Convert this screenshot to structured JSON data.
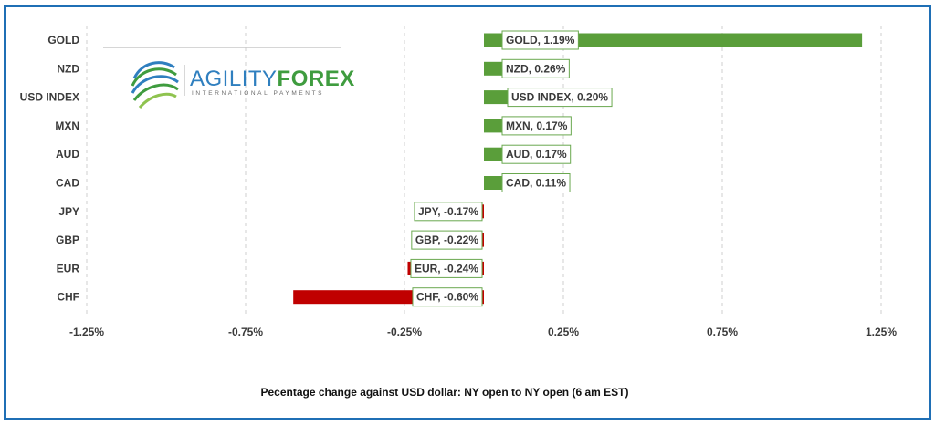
{
  "chart_data": {
    "type": "bar",
    "orientation": "horizontal",
    "categories": [
      "GOLD",
      "NZD",
      "USD INDEX",
      "MXN",
      "AUD",
      "CAD",
      "JPY",
      "GBP",
      "EUR",
      "CHF"
    ],
    "values": [
      1.19,
      0.26,
      0.2,
      0.17,
      0.17,
      0.11,
      -0.17,
      -0.22,
      -0.24,
      -0.6
    ],
    "data_labels": [
      "GOLD, 1.19%",
      "NZD, 0.26%",
      "USD INDEX, 0.20%",
      "MXN, 0.17%",
      "AUD, 0.17%",
      "CAD, 0.11%",
      "JPY, -0.17%",
      "GBP, -0.22%",
      "EUR, -0.24%",
      "CHF, -0.60%"
    ],
    "xlim": [
      -1.5,
      1.5
    ],
    "ticks": [
      -1.25,
      -0.75,
      -0.25,
      0.25,
      0.75,
      1.25
    ],
    "tick_labels": [
      "-1.25%",
      "-0.75%",
      "-0.25%",
      "0.25%",
      "0.75%",
      "1.25%"
    ],
    "gridlines": "vertical-dashed",
    "caption": "Pecentage change against USD dollar:  NY open to NY open  (6 am EST)",
    "colors": {
      "positive": "#5a9e3a",
      "negative": "#c00000",
      "frame": "#1f6fb5"
    }
  },
  "logo": {
    "name_part1": "AGILITY",
    "name_part2": "FOREX",
    "tagline": "INTERNATIONAL PAYMENTS",
    "colors": {
      "agility": "#2f7fbf",
      "forex": "#3f9c3f"
    }
  }
}
